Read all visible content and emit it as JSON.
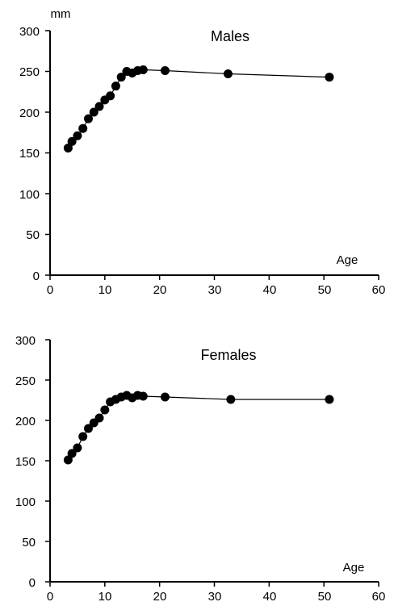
{
  "chart_data": [
    {
      "type": "line",
      "title": "Males",
      "ylabel": "mm",
      "xlabel": "Age",
      "xlim": [
        0,
        60
      ],
      "ylim": [
        0,
        300
      ],
      "xticks": [
        0,
        10,
        20,
        30,
        40,
        50,
        60
      ],
      "yticks": [
        0,
        50,
        100,
        150,
        200,
        250,
        300
      ],
      "grid": false,
      "marker": "filled-circle",
      "color": "#000000",
      "series": [
        {
          "x": [
            3.3,
            4.0,
            5.0,
            6.0,
            7.0,
            8.0,
            9.0,
            10.0,
            11.0,
            12.0,
            13.0,
            14.0,
            15.0,
            16.0,
            17.0,
            21.0,
            32.5,
            51.0
          ],
          "y": [
            156,
            164,
            171,
            180,
            192,
            200,
            207,
            215,
            220,
            232,
            243,
            250,
            248,
            251,
            252,
            251,
            247,
            243
          ]
        }
      ]
    },
    {
      "type": "line",
      "title": "Females",
      "ylabel": "",
      "xlabel": "Age",
      "xlim": [
        0,
        60
      ],
      "ylim": [
        0,
        300
      ],
      "xticks": [
        0,
        10,
        20,
        30,
        40,
        50,
        60
      ],
      "yticks": [
        0,
        50,
        100,
        150,
        200,
        250,
        300
      ],
      "grid": false,
      "marker": "filled-circle",
      "color": "#000000",
      "series": [
        {
          "x": [
            3.3,
            4.0,
            5.0,
            6.0,
            7.0,
            8.0,
            9.0,
            10.0,
            11.0,
            12.0,
            13.0,
            14.0,
            15.0,
            16.0,
            17.0,
            21.0,
            33.0,
            51.0
          ],
          "y": [
            151,
            159,
            166,
            180,
            190,
            197,
            203,
            213,
            223,
            226,
            229,
            231,
            228,
            231,
            230,
            229,
            226,
            226
          ]
        }
      ]
    }
  ]
}
